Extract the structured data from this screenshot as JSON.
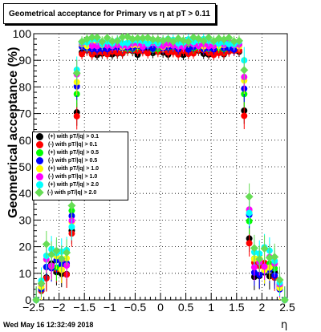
{
  "chart_data": {
    "type": "scatter",
    "title": "Geometrical acceptance for Primary vs   η at pT > 0.11",
    "xlabel": "η",
    "ylabel": "Geometrical acceptance (%)",
    "xlim": [
      -2.5,
      2.5
    ],
    "ylim": [
      0,
      100
    ],
    "x_ticks": [
      "−2.5",
      "−2",
      "−1.5",
      "−1",
      "−0.5",
      "0",
      "0.5",
      "1",
      "1.5",
      "2",
      "2.5"
    ],
    "y_ticks": [
      "0",
      "10",
      "20",
      "30",
      "40",
      "50",
      "60",
      "70",
      "80",
      "90",
      "100"
    ],
    "grid": true,
    "legend_position": "left-middle",
    "series": [
      {
        "name": "(+) with pT/|q| > 0.1",
        "color": "#000000",
        "marker": "circle",
        "plateau": 94,
        "edge": 72,
        "edge2": 24,
        "tail": 8
      },
      {
        "name": "(-) with pT/|q| > 0.1",
        "color": "#ff0000",
        "marker": "circle",
        "plateau": 94,
        "edge": 72,
        "edge2": 24,
        "tail": 8
      },
      {
        "name": "(+) with pT/|q| > 0.5",
        "color": "#00ff00",
        "marker": "circle",
        "plateau": 96,
        "edge": 79,
        "edge2": 30,
        "tail": 10
      },
      {
        "name": "(-) with pT/|q| > 0.5",
        "color": "#0000ff",
        "marker": "circle",
        "plateau": 96,
        "edge": 82,
        "edge2": 30,
        "tail": 9
      },
      {
        "name": "(+) with pT/|q| > 1.0",
        "color": "#ffff00",
        "marker": "circle",
        "plateau": 97,
        "edge": 84,
        "edge2": 33,
        "tail": 11
      },
      {
        "name": "(-) with pT/|q| > 1.0",
        "color": "#ff00ff",
        "marker": "circle",
        "plateau": 97,
        "edge": 85,
        "edge2": 33,
        "tail": 12
      },
      {
        "name": "(+) with pT/|q| > 2.0",
        "color": "#00ffff",
        "marker": "circle",
        "plateau": 98,
        "edge": 88,
        "edge2": 30,
        "tail": 14
      },
      {
        "name": "(-) with pT/|q| > 2.0",
        "color": "#66dd55",
        "marker": "diamond",
        "plateau": 99,
        "edge": 86,
        "edge2": 37,
        "tail": 15
      }
    ],
    "x_points": [
      -2.45,
      -2.35,
      -2.25,
      -2.15,
      -2.05,
      -1.95,
      -1.85,
      -1.75,
      -1.65,
      -1.55,
      -1.45,
      -1.35,
      -1.25,
      -1.15,
      -1.05,
      -0.95,
      -0.85,
      -0.75,
      -0.65,
      -0.55,
      -0.45,
      -0.35,
      -0.25,
      -0.15,
      -0.05,
      0.05,
      0.15,
      0.25,
      0.35,
      0.45,
      0.55,
      0.65,
      0.75,
      0.85,
      0.95,
      1.05,
      1.15,
      1.25,
      1.35,
      1.45,
      1.55,
      1.65,
      1.75,
      1.85,
      1.95,
      2.05,
      2.15,
      2.25,
      2.35,
      2.45
    ]
  },
  "footer": "Wed May 16 12:32:49 2018"
}
